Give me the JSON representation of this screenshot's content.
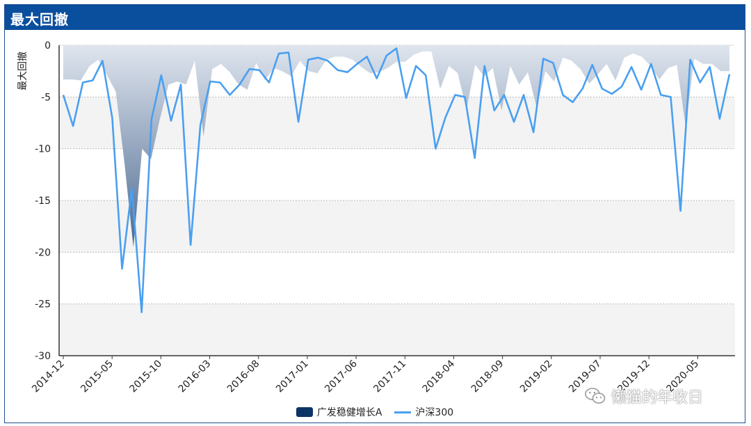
{
  "header": {
    "title": "最大回撤"
  },
  "watermark": {
    "text": "懒猫的年收日",
    "icon": "wechat-icon"
  },
  "colors": {
    "area_fill_top": "#dfe5ee",
    "area_fill_bottom": "#4d6a90",
    "line": "#4a9ff0",
    "band": "#f3f3f3",
    "header": "#0a4e9e"
  },
  "chart_data": {
    "type": "area",
    "title": "最大回撤",
    "xlabel": "",
    "ylabel": "最大回撤",
    "ylim": [
      -30,
      0
    ],
    "yticks": [
      0,
      -5,
      -10,
      -15,
      -20,
      -25,
      -30
    ],
    "xtick_labels": [
      "2014-12",
      "2015-05",
      "2015-10",
      "2016-03",
      "2016-08",
      "2017-01",
      "2017-06",
      "2017-11",
      "2018-04",
      "2018-09",
      "2019-02",
      "2019-07",
      "2019-12",
      "2020-05"
    ],
    "grid": true,
    "legend": "bottom",
    "series": [
      {
        "name": "广发稳健增长A",
        "type": "area",
        "values": [
          -3.3,
          -3.3,
          -3.4,
          -2.0,
          -1.4,
          -2.9,
          -4.5,
          -11.5,
          -19.5,
          -10.0,
          -11.0,
          -7.2,
          -3.8,
          -3.5,
          -3.8,
          -1.5,
          -8.8,
          -2.3,
          -1.8,
          -2.6,
          -3.8,
          -4.3,
          -1.7,
          -3.4,
          -2.2,
          -2.5,
          -3.0,
          -1.5,
          -2.5,
          -2.7,
          -1.4,
          -1.1,
          -1.1,
          -1.4,
          -2.1,
          -2.7,
          -2.6,
          -2.2,
          -1.6,
          -1.6,
          -0.9,
          -0.6,
          -0.6,
          -4.2,
          -2.0,
          -2.7,
          -6.2,
          -1.9,
          -3.0,
          -2.2,
          -6.3,
          -2.0,
          -3.8,
          -2.6,
          -6.0,
          -2.5,
          -3.5,
          -1.2,
          -1.5,
          -2.3,
          -3.7,
          -2.8,
          -1.8,
          -3.4,
          -1.2,
          -0.8,
          -1.1,
          -2.0,
          -3.3,
          -2.2,
          -1.9,
          -7.8,
          -1.3,
          -1.8,
          -1.8,
          -2.5,
          -2.5
        ]
      },
      {
        "name": "沪深300",
        "type": "line",
        "values": [
          -4.8,
          -7.8,
          -3.6,
          -3.4,
          -1.5,
          -7.0,
          -21.6,
          -13.8,
          -25.8,
          -7.2,
          -2.9,
          -7.3,
          -3.8,
          -19.3,
          -7.7,
          -3.5,
          -3.6,
          -4.8,
          -3.8,
          -2.3,
          -2.4,
          -3.6,
          -0.8,
          -0.7,
          -7.4,
          -1.4,
          -1.2,
          -1.5,
          -2.4,
          -2.6,
          -1.8,
          -1.1,
          -3.2,
          -1.0,
          -0.3,
          -5.1,
          -2.0,
          -2.9,
          -10.0,
          -7.0,
          -4.8,
          -5.0,
          -10.9,
          -2.0,
          -6.3,
          -4.8,
          -7.4,
          -4.8,
          -8.4,
          -1.3,
          -1.7,
          -4.8,
          -5.5,
          -4.2,
          -1.9,
          -4.2,
          -4.7,
          -4.0,
          -2.1,
          -4.3,
          -1.8,
          -4.8,
          -5.0,
          -16.0,
          -1.4,
          -3.6,
          -2.1,
          -7.1,
          -2.8
        ]
      }
    ]
  }
}
